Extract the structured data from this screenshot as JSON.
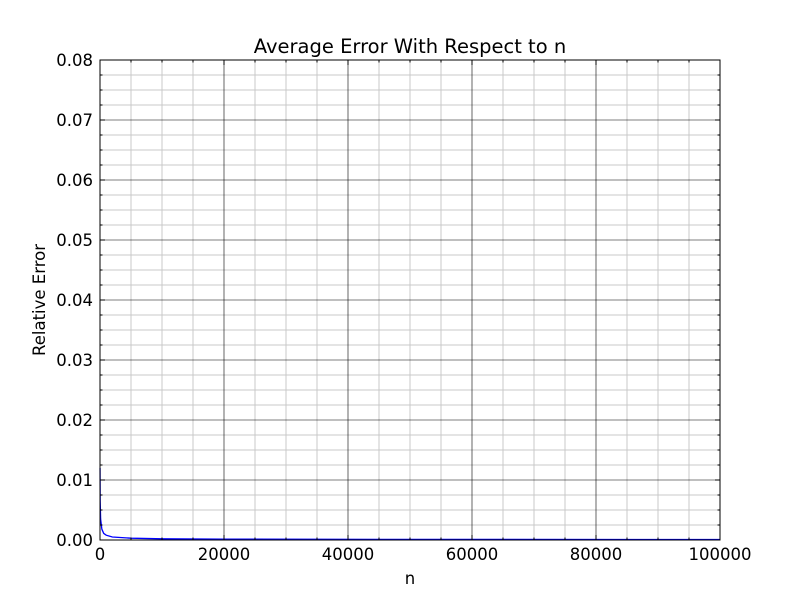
{
  "chart_data": {
    "type": "line",
    "title": "Average Error With Respect to n",
    "xlabel": "n",
    "ylabel": "Relative Error",
    "xlim": [
      0,
      100000
    ],
    "ylim": [
      0,
      0.08
    ],
    "x_ticks": [
      0,
      20000,
      40000,
      60000,
      80000,
      100000
    ],
    "x_tick_labels": [
      "0",
      "20000",
      "40000",
      "60000",
      "80000",
      "100000"
    ],
    "y_ticks": [
      0,
      0.01,
      0.02,
      0.03,
      0.04,
      0.05,
      0.06,
      0.07,
      0.08
    ],
    "y_tick_labels": [
      "0.00",
      "0.01",
      "0.02",
      "0.03",
      "0.04",
      "0.05",
      "0.06",
      "0.07",
      "0.08"
    ],
    "grid": "major and minor",
    "series": [
      {
        "color": "#0000ff",
        "x": [
          10,
          30,
          100,
          300,
          600,
          1000,
          2000,
          5000,
          10000,
          20000,
          50000,
          100000
        ],
        "y": [
          0.012,
          0.0065,
          0.0035,
          0.0018,
          0.0011,
          0.0008,
          0.0005,
          0.0003,
          0.0002,
          0.00015,
          0.0001,
          7e-05
        ]
      }
    ]
  }
}
